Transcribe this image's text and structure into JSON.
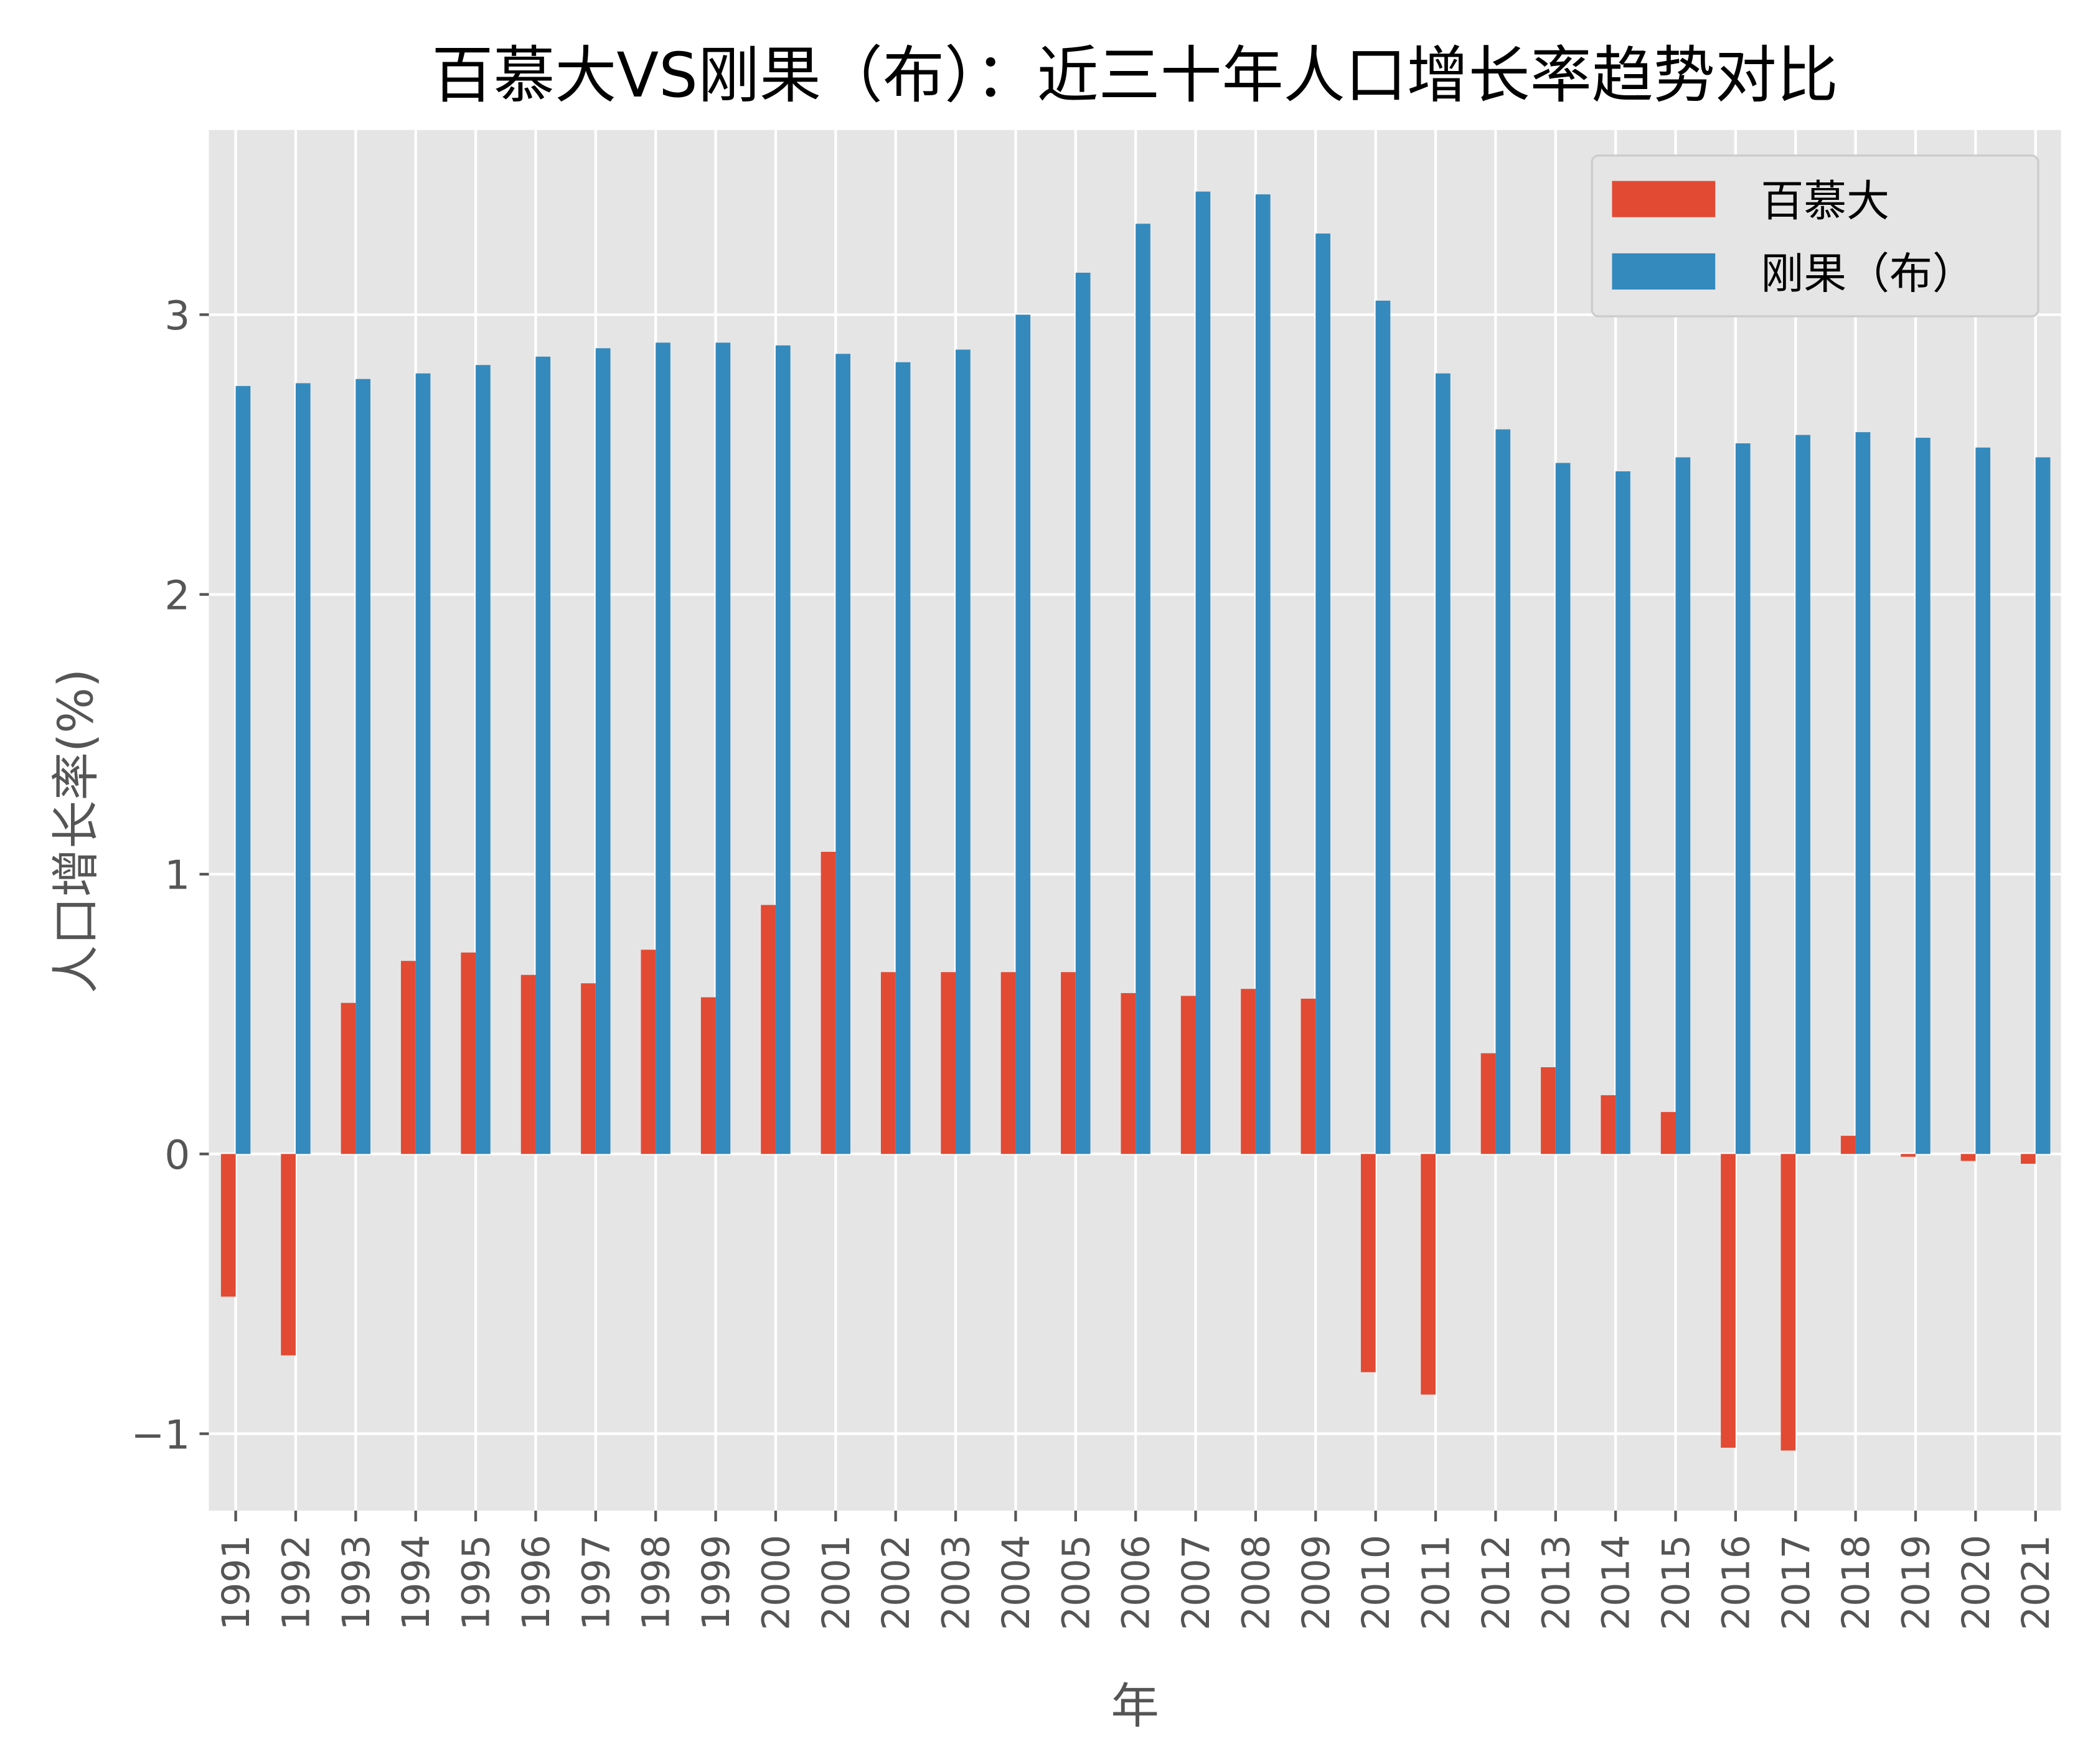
{
  "chart_data": {
    "type": "bar",
    "title": "百慕大VS刚果（布）：近三十年人口增长率趋势对比",
    "xlabel": "年",
    "ylabel": "人口增长率(%)",
    "ylim": [
      -1.275,
      3.66
    ],
    "yticks": [
      -1,
      0,
      1,
      2,
      3
    ],
    "grid": true,
    "legend_position": "top-right",
    "categories": [
      "1991",
      "1992",
      "1993",
      "1994",
      "1995",
      "1996",
      "1997",
      "1998",
      "1999",
      "2000",
      "2001",
      "2002",
      "2003",
      "2004",
      "2005",
      "2006",
      "2007",
      "2008",
      "2009",
      "2010",
      "2011",
      "2012",
      "2013",
      "2014",
      "2015",
      "2016",
      "2017",
      "2018",
      "2019",
      "2020",
      "2021"
    ],
    "series": [
      {
        "name": "百慕大",
        "color": "#e24a33",
        "values": [
          -0.51,
          -0.72,
          0.54,
          0.69,
          0.72,
          0.64,
          0.61,
          0.73,
          0.56,
          0.89,
          1.08,
          0.65,
          0.65,
          0.65,
          0.65,
          0.575,
          0.565,
          0.59,
          0.555,
          -0.78,
          -0.86,
          0.36,
          0.31,
          0.21,
          0.15,
          -1.05,
          -1.06,
          0.065,
          -0.01,
          -0.025,
          -0.035
        ]
      },
      {
        "name": "刚果（布）",
        "color": "#348abd",
        "values": [
          2.745,
          2.755,
          2.77,
          2.79,
          2.82,
          2.85,
          2.88,
          2.9,
          2.9,
          2.89,
          2.86,
          2.83,
          2.875,
          3.0,
          3.15,
          3.325,
          3.44,
          3.43,
          3.29,
          3.05,
          2.79,
          2.59,
          2.47,
          2.44,
          2.49,
          2.54,
          2.57,
          2.58,
          2.56,
          2.525,
          2.49
        ]
      }
    ]
  }
}
